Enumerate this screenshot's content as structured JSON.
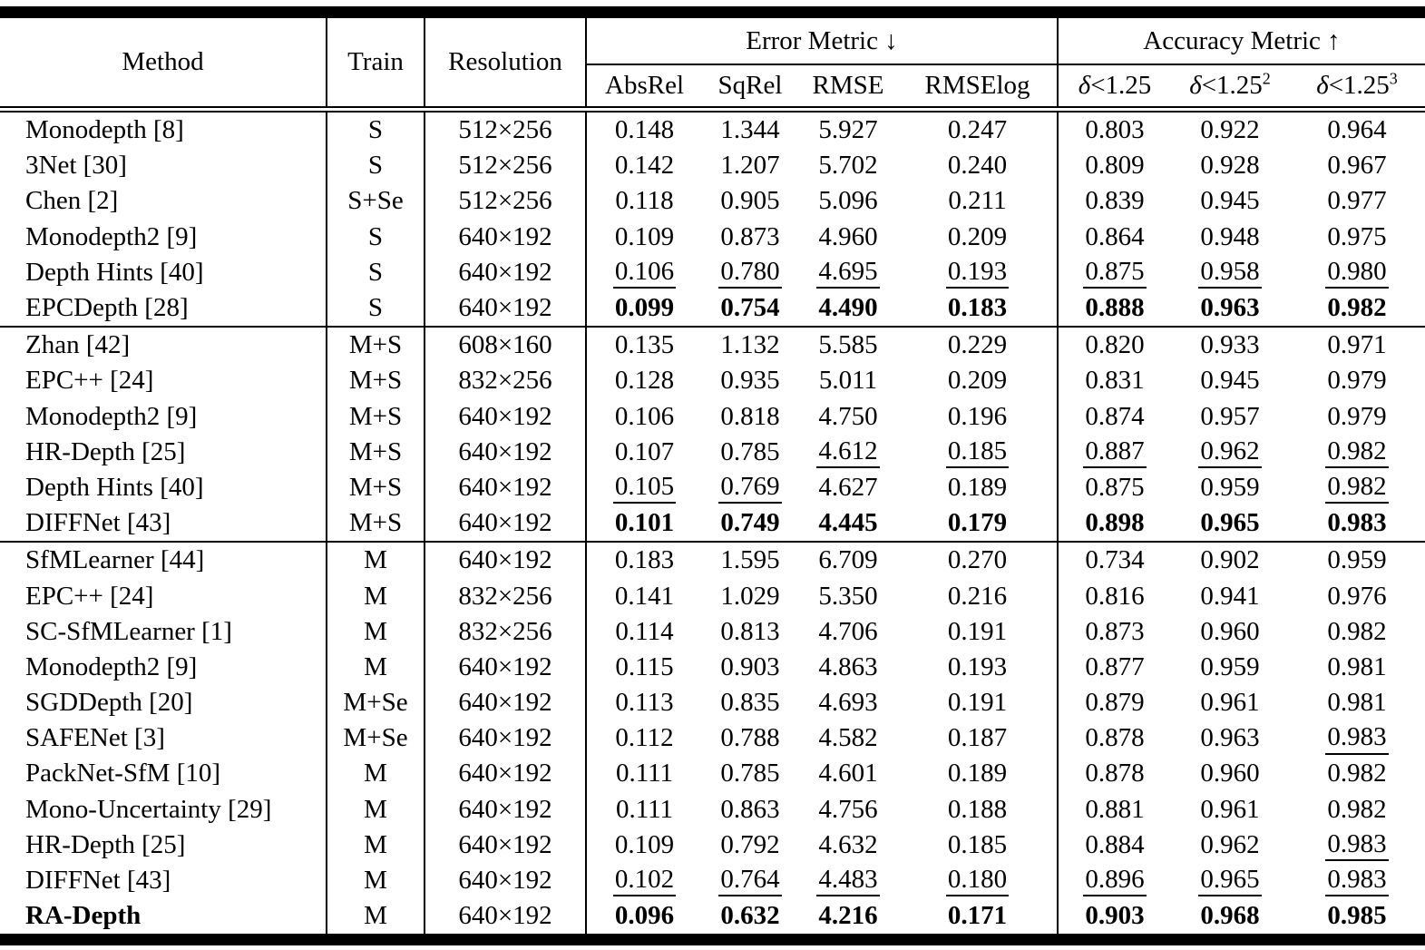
{
  "colors": {
    "text": "#000000",
    "background": "#ffffff",
    "rule": "#000000"
  },
  "table": {
    "header": {
      "method": "Method",
      "train": "Train",
      "resolution": "Resolution",
      "error_group": "Error Metric ↓",
      "accuracy_group": "Accuracy Metric ↑",
      "error_cols": [
        "AbsRel",
        "SqRel",
        "RMSE",
        "RMSElog"
      ],
      "accuracy_cols": [
        {
          "delta": "δ",
          "rest": "<1.25",
          "sup": ""
        },
        {
          "delta": "δ",
          "rest": "<1.25",
          "sup": "2"
        },
        {
          "delta": "δ",
          "rest": "<1.25",
          "sup": "3"
        }
      ]
    },
    "groups": [
      {
        "rows": [
          {
            "method": "Monodepth [8]",
            "method_style": "",
            "train": "S",
            "resolution": "512×256",
            "values": [
              "0.148",
              "1.344",
              "5.927",
              "0.247",
              "0.803",
              "0.922",
              "0.964"
            ],
            "emphasis": [
              "",
              "",
              "",
              "",
              "",
              "",
              ""
            ]
          },
          {
            "method": "3Net [30]",
            "method_style": "",
            "train": "S",
            "resolution": "512×256",
            "values": [
              "0.142",
              "1.207",
              "5.702",
              "0.240",
              "0.809",
              "0.928",
              "0.967"
            ],
            "emphasis": [
              "",
              "",
              "",
              "",
              "",
              "",
              ""
            ]
          },
          {
            "method": "Chen [2]",
            "method_style": "",
            "train": "S+Se",
            "resolution": "512×256",
            "values": [
              "0.118",
              "0.905",
              "5.096",
              "0.211",
              "0.839",
              "0.945",
              "0.977"
            ],
            "emphasis": [
              "",
              "",
              "",
              "",
              "",
              "",
              ""
            ]
          },
          {
            "method": "Monodepth2 [9]",
            "method_style": "",
            "train": "S",
            "resolution": "640×192",
            "values": [
              "0.109",
              "0.873",
              "4.960",
              "0.209",
              "0.864",
              "0.948",
              "0.975"
            ],
            "emphasis": [
              "",
              "",
              "",
              "",
              "",
              "",
              ""
            ]
          },
          {
            "method": "Depth Hints [40]",
            "method_style": "",
            "train": "S",
            "resolution": "640×192",
            "values": [
              "0.106",
              "0.780",
              "4.695",
              "0.193",
              "0.875",
              "0.958",
              "0.980"
            ],
            "emphasis": [
              "u",
              "u",
              "u",
              "u",
              "u",
              "u",
              "u"
            ]
          },
          {
            "method": "EPCDepth [28]",
            "method_style": "",
            "train": "S",
            "resolution": "640×192",
            "values": [
              "0.099",
              "0.754",
              "4.490",
              "0.183",
              "0.888",
              "0.963",
              "0.982"
            ],
            "emphasis": [
              "b",
              "b",
              "b",
              "b",
              "b",
              "b",
              "b"
            ]
          }
        ]
      },
      {
        "rows": [
          {
            "method": "Zhan [42]",
            "method_style": "",
            "train": "M+S",
            "resolution": "608×160",
            "values": [
              "0.135",
              "1.132",
              "5.585",
              "0.229",
              "0.820",
              "0.933",
              "0.971"
            ],
            "emphasis": [
              "",
              "",
              "",
              "",
              "",
              "",
              ""
            ]
          },
          {
            "method": "EPC++ [24]",
            "method_style": "",
            "train": "M+S",
            "resolution": "832×256",
            "values": [
              "0.128",
              "0.935",
              "5.011",
              "0.209",
              "0.831",
              "0.945",
              "0.979"
            ],
            "emphasis": [
              "",
              "",
              "",
              "",
              "",
              "",
              ""
            ]
          },
          {
            "method": "Monodepth2 [9]",
            "method_style": "",
            "train": "M+S",
            "resolution": "640×192",
            "values": [
              "0.106",
              "0.818",
              "4.750",
              "0.196",
              "0.874",
              "0.957",
              "0.979"
            ],
            "emphasis": [
              "",
              "",
              "",
              "",
              "",
              "",
              ""
            ]
          },
          {
            "method": "HR-Depth [25]",
            "method_style": "",
            "train": "M+S",
            "resolution": "640×192",
            "values": [
              "0.107",
              "0.785",
              "4.612",
              "0.185",
              "0.887",
              "0.962",
              "0.982"
            ],
            "emphasis": [
              "",
              "",
              "u",
              "u",
              "u",
              "u",
              "u"
            ]
          },
          {
            "method": "Depth Hints [40]",
            "method_style": "",
            "train": "M+S",
            "resolution": "640×192",
            "values": [
              "0.105",
              "0.769",
              "4.627",
              "0.189",
              "0.875",
              "0.959",
              "0.982"
            ],
            "emphasis": [
              "u",
              "u",
              "",
              "",
              "",
              "",
              "u"
            ]
          },
          {
            "method": "DIFFNet [43]",
            "method_style": "",
            "train": "M+S",
            "resolution": "640×192",
            "values": [
              "0.101",
              "0.749",
              "4.445",
              "0.179",
              "0.898",
              "0.965",
              "0.983"
            ],
            "emphasis": [
              "b",
              "b",
              "b",
              "b",
              "b",
              "b",
              "b"
            ]
          }
        ]
      },
      {
        "rows": [
          {
            "method": "SfMLearner [44]",
            "method_style": "",
            "train": "M",
            "resolution": "640×192",
            "values": [
              "0.183",
              "1.595",
              "6.709",
              "0.270",
              "0.734",
              "0.902",
              "0.959"
            ],
            "emphasis": [
              "",
              "",
              "",
              "",
              "",
              "",
              ""
            ]
          },
          {
            "method": "EPC++ [24]",
            "method_style": "",
            "train": "M",
            "resolution": "832×256",
            "values": [
              "0.141",
              "1.029",
              "5.350",
              "0.216",
              "0.816",
              "0.941",
              "0.976"
            ],
            "emphasis": [
              "",
              "",
              "",
              "",
              "",
              "",
              ""
            ]
          },
          {
            "method": "SC-SfMLearner [1]",
            "method_style": "",
            "train": "M",
            "resolution": "832×256",
            "values": [
              "0.114",
              "0.813",
              "4.706",
              "0.191",
              "0.873",
              "0.960",
              "0.982"
            ],
            "emphasis": [
              "",
              "",
              "",
              "",
              "",
              "",
              ""
            ]
          },
          {
            "method": "Monodepth2 [9]",
            "method_style": "",
            "train": "M",
            "resolution": "640×192",
            "values": [
              "0.115",
              "0.903",
              "4.863",
              "0.193",
              "0.877",
              "0.959",
              "0.981"
            ],
            "emphasis": [
              "",
              "",
              "",
              "",
              "",
              "",
              ""
            ]
          },
          {
            "method": "SGDDepth [20]",
            "method_style": "",
            "train": "M+Se",
            "resolution": "640×192",
            "values": [
              "0.113",
              "0.835",
              "4.693",
              "0.191",
              "0.879",
              "0.961",
              "0.981"
            ],
            "emphasis": [
              "",
              "",
              "",
              "",
              "",
              "",
              ""
            ]
          },
          {
            "method": "SAFENet [3]",
            "method_style": "",
            "train": "M+Se",
            "resolution": "640×192",
            "values": [
              "0.112",
              "0.788",
              "4.582",
              "0.187",
              "0.878",
              "0.963",
              "0.983"
            ],
            "emphasis": [
              "",
              "",
              "",
              "",
              "",
              "",
              "u"
            ]
          },
          {
            "method": "PackNet-SfM [10]",
            "method_style": "",
            "train": "M",
            "resolution": "640×192",
            "values": [
              "0.111",
              "0.785",
              "4.601",
              "0.189",
              "0.878",
              "0.960",
              "0.982"
            ],
            "emphasis": [
              "",
              "",
              "",
              "",
              "",
              "",
              ""
            ]
          },
          {
            "method": "Mono-Uncertainty [29]",
            "method_style": "",
            "train": "M",
            "resolution": "640×192",
            "values": [
              "0.111",
              "0.863",
              "4.756",
              "0.188",
              "0.881",
              "0.961",
              "0.982"
            ],
            "emphasis": [
              "",
              "",
              "",
              "",
              "",
              "",
              ""
            ]
          },
          {
            "method": "HR-Depth [25]",
            "method_style": "",
            "train": "M",
            "resolution": "640×192",
            "values": [
              "0.109",
              "0.792",
              "4.632",
              "0.185",
              "0.884",
              "0.962",
              "0.983"
            ],
            "emphasis": [
              "",
              "",
              "",
              "",
              "",
              "",
              "u"
            ]
          },
          {
            "method": "DIFFNet [43]",
            "method_style": "",
            "train": "M",
            "resolution": "640×192",
            "values": [
              "0.102",
              "0.764",
              "4.483",
              "0.180",
              "0.896",
              "0.965",
              "0.983"
            ],
            "emphasis": [
              "u",
              "u",
              "u",
              "u",
              "u",
              "u",
              "u"
            ]
          },
          {
            "method": "RA-Depth",
            "method_style": "b",
            "train": "M",
            "resolution": "640×192",
            "values": [
              "0.096",
              "0.632",
              "4.216",
              "0.171",
              "0.903",
              "0.968",
              "0.985"
            ],
            "emphasis": [
              "b",
              "b",
              "b",
              "b",
              "b",
              "b",
              "b"
            ]
          }
        ]
      }
    ]
  }
}
